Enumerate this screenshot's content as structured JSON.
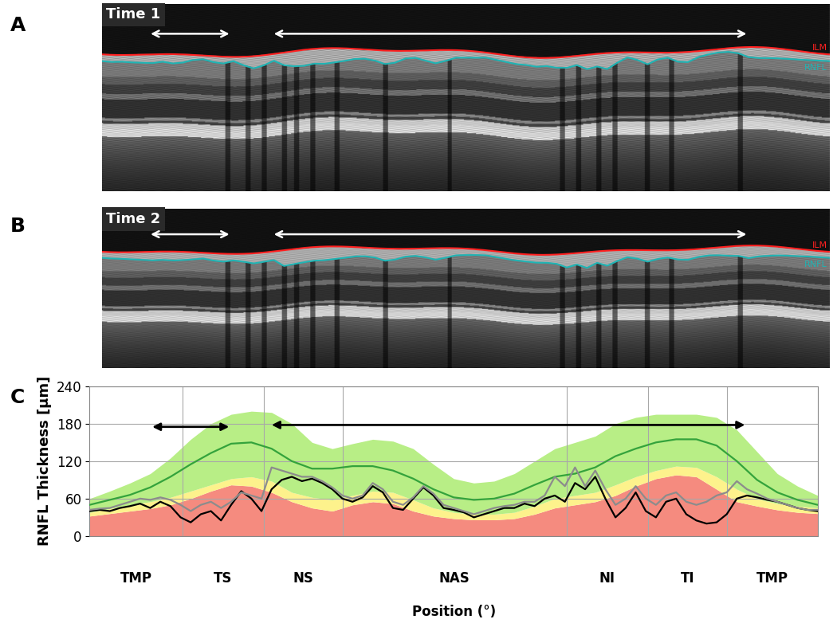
{
  "panels": [
    {
      "label": "A",
      "title": "Time 1",
      "arrows": [
        {
          "start": 24,
          "end": 63
        },
        {
          "start": 85,
          "end": 319
        }
      ]
    },
    {
      "label": "B",
      "title": "Time 2",
      "arrows": [
        {
          "start": 24,
          "end": 63
        },
        {
          "start": 85,
          "end": 319
        }
      ]
    }
  ],
  "boundaries": [
    {
      "name": "ILM",
      "color": "#ff2020"
    },
    {
      "name": "RNFL",
      "color": "#20b4b4"
    }
  ],
  "chart_data": {
    "label": "C",
    "type": "line",
    "ylabel": "RNFL Thickness [µm]",
    "xlabel": "Position (°)",
    "xlim": [
      0,
      360
    ],
    "ylim": [
      0,
      240
    ],
    "yticks": [
      0,
      60,
      120,
      180,
      240
    ],
    "grid": true,
    "tick_labels": "y",
    "sectors": [
      {
        "label": "TMP",
        "start": 0,
        "end": 46
      },
      {
        "label": "TS",
        "start": 46,
        "end": 86
      },
      {
        "label": "NS",
        "start": 86,
        "end": 125
      },
      {
        "label": "NAS",
        "start": 125,
        "end": 236
      },
      {
        "label": "NI",
        "start": 236,
        "end": 276
      },
      {
        "label": "TI",
        "start": 276,
        "end": 315
      },
      {
        "label": "TMP",
        "start": 315,
        "end": 360
      }
    ],
    "arrows": [
      {
        "start": 31,
        "end": 69,
        "y": 175
      },
      {
        "start": 90,
        "end": 324,
        "y": 178
      }
    ],
    "series": [
      {
        "type": "area",
        "color": "#f58b7f",
        "x": [
          0,
          10,
          20,
          30,
          40,
          50,
          60,
          70,
          80,
          90,
          100,
          110,
          120,
          130,
          140,
          150,
          160,
          170,
          180,
          190,
          200,
          210,
          220,
          230,
          240,
          250,
          260,
          270,
          280,
          290,
          300,
          310,
          320,
          330,
          340,
          350,
          360
        ],
        "values": [
          32,
          36,
          40,
          44,
          50,
          60,
          72,
          82,
          80,
          70,
          55,
          45,
          40,
          50,
          55,
          52,
          40,
          32,
          28,
          26,
          26,
          28,
          35,
          45,
          50,
          55,
          65,
          80,
          92,
          98,
          95,
          75,
          55,
          48,
          42,
          38,
          36
        ]
      },
      {
        "type": "area",
        "color": "#fdf28c",
        "x": [
          0,
          10,
          20,
          30,
          40,
          50,
          60,
          70,
          80,
          90,
          100,
          110,
          120,
          130,
          140,
          150,
          160,
          170,
          180,
          190,
          200,
          210,
          220,
          230,
          240,
          250,
          260,
          270,
          280,
          290,
          300,
          310,
          320,
          330,
          340,
          350,
          360
        ],
        "values": [
          38,
          44,
          50,
          55,
          62,
          72,
          82,
          92,
          95,
          88,
          70,
          62,
          58,
          65,
          72,
          70,
          58,
          45,
          38,
          35,
          35,
          38,
          48,
          60,
          65,
          70,
          82,
          95,
          105,
          112,
          110,
          95,
          75,
          60,
          52,
          48,
          45
        ]
      },
      {
        "type": "area",
        "color": "#b8ee86",
        "x": [
          0,
          10,
          20,
          30,
          40,
          50,
          60,
          70,
          80,
          90,
          100,
          110,
          120,
          130,
          140,
          150,
          160,
          170,
          180,
          190,
          200,
          210,
          220,
          230,
          240,
          250,
          260,
          270,
          280,
          290,
          300,
          310,
          320,
          330,
          340,
          350,
          360
        ],
        "values": [
          60,
          72,
          85,
          100,
          125,
          155,
          180,
          195,
          200,
          198,
          180,
          150,
          140,
          148,
          155,
          152,
          140,
          115,
          92,
          85,
          88,
          100,
          120,
          140,
          150,
          160,
          180,
          190,
          195,
          195,
          195,
          190,
          170,
          135,
          100,
          80,
          65
        ]
      },
      {
        "type": "line",
        "color": "#34a33c",
        "x": [
          0,
          10,
          20,
          30,
          40,
          50,
          60,
          70,
          80,
          90,
          100,
          110,
          120,
          130,
          140,
          150,
          160,
          170,
          180,
          190,
          200,
          210,
          220,
          230,
          240,
          250,
          260,
          270,
          280,
          290,
          300,
          310,
          320,
          330,
          340,
          350,
          360
        ],
        "values": [
          50,
          58,
          66,
          78,
          95,
          115,
          133,
          148,
          150,
          140,
          120,
          108,
          108,
          112,
          112,
          105,
          92,
          75,
          62,
          58,
          60,
          68,
          82,
          95,
          100,
          110,
          128,
          140,
          150,
          155,
          155,
          145,
          120,
          90,
          70,
          58,
          50
        ]
      },
      {
        "type": "line",
        "color": "#000000",
        "x": [
          0,
          5,
          10,
          15,
          20,
          25,
          30,
          35,
          40,
          45,
          50,
          55,
          60,
          65,
          70,
          75,
          80,
          85,
          90,
          95,
          100,
          105,
          110,
          115,
          120,
          125,
          130,
          135,
          140,
          145,
          150,
          155,
          160,
          165,
          170,
          175,
          180,
          185,
          190,
          195,
          200,
          205,
          210,
          215,
          220,
          225,
          230,
          235,
          240,
          245,
          250,
          255,
          260,
          265,
          270,
          275,
          280,
          285,
          290,
          295,
          300,
          305,
          310,
          315,
          320,
          325,
          330,
          335,
          340,
          345,
          350,
          355,
          360
        ],
        "values": [
          40,
          42,
          40,
          45,
          48,
          52,
          45,
          55,
          48,
          30,
          22,
          35,
          40,
          25,
          50,
          72,
          60,
          40,
          75,
          90,
          95,
          88,
          92,
          85,
          75,
          60,
          55,
          62,
          80,
          70,
          45,
          42,
          60,
          78,
          65,
          45,
          42,
          38,
          30,
          35,
          40,
          45,
          45,
          52,
          48,
          60,
          65,
          55,
          85,
          75,
          95,
          60,
          30,
          45,
          70,
          40,
          30,
          55,
          60,
          35,
          25,
          20,
          22,
          35,
          60,
          65,
          62,
          58,
          55,
          50,
          45,
          42,
          40
        ]
      },
      {
        "type": "line",
        "color": "#8c8c8c",
        "x": [
          0,
          5,
          10,
          15,
          20,
          25,
          30,
          35,
          40,
          45,
          50,
          55,
          60,
          65,
          70,
          75,
          80,
          85,
          90,
          95,
          100,
          105,
          110,
          115,
          120,
          125,
          130,
          135,
          140,
          145,
          150,
          155,
          160,
          165,
          170,
          175,
          180,
          185,
          190,
          195,
          200,
          205,
          210,
          215,
          220,
          225,
          230,
          235,
          240,
          245,
          250,
          255,
          260,
          265,
          270,
          275,
          280,
          285,
          290,
          295,
          300,
          305,
          310,
          315,
          320,
          325,
          330,
          335,
          340,
          345,
          350,
          355,
          360
        ],
        "values": [
          42,
          44,
          45,
          50,
          55,
          60,
          58,
          62,
          58,
          50,
          40,
          50,
          55,
          45,
          55,
          70,
          65,
          60,
          110,
          105,
          100,
          95,
          95,
          88,
          78,
          65,
          60,
          65,
          85,
          75,
          55,
          50,
          62,
          80,
          68,
          50,
          45,
          40,
          35,
          40,
          45,
          48,
          50,
          55,
          55,
          65,
          95,
          80,
          110,
          80,
          105,
          75,
          50,
          60,
          80,
          60,
          50,
          65,
          70,
          55,
          50,
          55,
          65,
          70,
          88,
          75,
          68,
          60,
          55,
          50,
          45,
          42,
          42
        ]
      }
    ]
  }
}
